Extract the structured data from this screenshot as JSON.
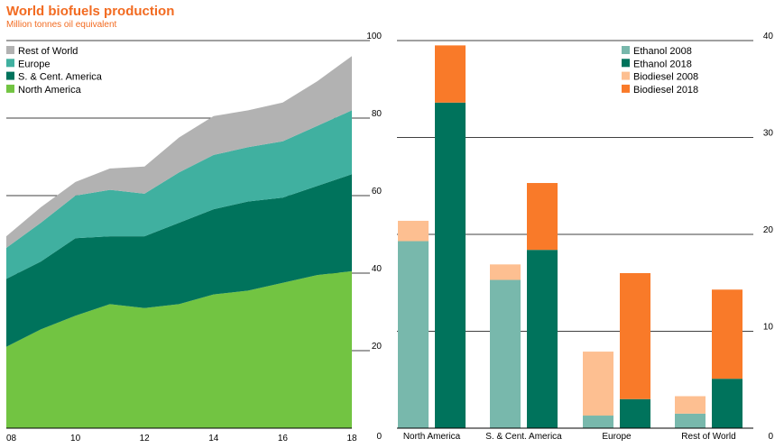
{
  "title": "World biofuels production",
  "subtitle": "Million tonnes oil equivalent",
  "colors": {
    "rest_of_world": "#b2b2b2",
    "europe": "#40b0a0",
    "scam": "#00735c",
    "north_america": "#72c442",
    "ethanol_2008": "#78b8ac",
    "ethanol_2018": "#00735c",
    "biodiesel_2008": "#fdbf91",
    "biodiesel_2018": "#f97a29"
  },
  "chart_data": [
    {
      "type": "area",
      "stacked": true,
      "x": [
        2008,
        2009,
        2010,
        2011,
        2012,
        2013,
        2014,
        2015,
        2016,
        2017,
        2018
      ],
      "xticks": [
        "08",
        "10",
        "12",
        "14",
        "16",
        "18"
      ],
      "yticks": [
        "0",
        "20",
        "40",
        "60",
        "80",
        "100"
      ],
      "ylim": [
        0,
        100
      ],
      "legend_position": "top-left",
      "series": [
        {
          "name": "North America",
          "color_key": "north_america",
          "values": [
            21,
            25.5,
            29,
            32,
            31,
            32,
            34.5,
            35.5,
            37.5,
            39.5,
            40.5
          ]
        },
        {
          "name": "S. & Cent. America",
          "color_key": "scam",
          "values": [
            17.5,
            17.5,
            20,
            17.5,
            18.5,
            21,
            22,
            23,
            22,
            23,
            25
          ]
        },
        {
          "name": "Europe",
          "color_key": "europe",
          "values": [
            8,
            10,
            11,
            12,
            11,
            13,
            14,
            14,
            14.5,
            15.5,
            16.5
          ]
        },
        {
          "name": "Rest of World",
          "color_key": "rest_of_world",
          "values": [
            3,
            4,
            3.5,
            5.5,
            7,
            9,
            10,
            9.5,
            10,
            11.5,
            14
          ]
        }
      ]
    },
    {
      "type": "bar",
      "stacked": true,
      "categories": [
        "North America",
        "S. & Cent. America",
        "Europe",
        "Rest of World"
      ],
      "yticks": [
        "0",
        "10",
        "20",
        "30",
        "40"
      ],
      "ylim": [
        0,
        40
      ],
      "legend_position": "top-right",
      "series": [
        {
          "name": "Ethanol 2008",
          "color_key": "ethanol_2008",
          "group": "2008",
          "values": [
            19.3,
            15.3,
            1.3,
            1.5
          ]
        },
        {
          "name": "Biodiesel 2008",
          "color_key": "biodiesel_2008",
          "group": "2008",
          "values": [
            2.1,
            1.6,
            6.6,
            1.8
          ]
        },
        {
          "name": "Ethanol 2018",
          "color_key": "ethanol_2018",
          "group": "2018",
          "values": [
            33.6,
            18.4,
            3.0,
            5.1
          ]
        },
        {
          "name": "Biodiesel 2018",
          "color_key": "biodiesel_2018",
          "group": "2018",
          "values": [
            5.9,
            6.9,
            13.0,
            9.2
          ]
        }
      ],
      "legend_order": [
        "Ethanol 2008",
        "Ethanol 2018",
        "Biodiesel 2008",
        "Biodiesel 2018"
      ]
    }
  ]
}
